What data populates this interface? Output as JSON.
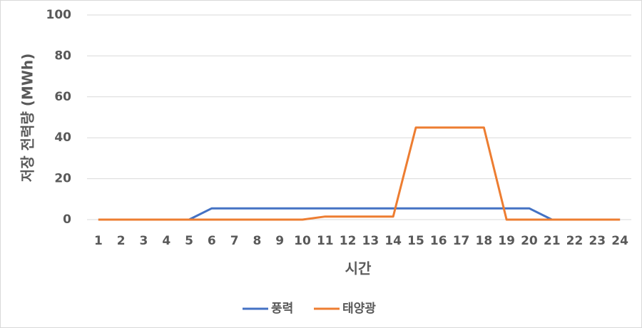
{
  "chart_data": {
    "type": "line",
    "x_label": "시간",
    "y_label": "저장 전력량 (MWh)",
    "categories": [
      "1",
      "2",
      "3",
      "4",
      "5",
      "6",
      "7",
      "8",
      "9",
      "10",
      "11",
      "12",
      "13",
      "14",
      "15",
      "16",
      "17",
      "18",
      "19",
      "20",
      "21",
      "22",
      "23",
      "24"
    ],
    "series": [
      {
        "name": "풍력",
        "color": "#4472c4",
        "values": [
          0,
          0,
          0,
          0,
          0,
          5.5,
          5.5,
          5.5,
          5.5,
          5.5,
          5.5,
          5.5,
          5.5,
          5.5,
          5.5,
          5.5,
          5.5,
          5.5,
          5.5,
          5.5,
          0,
          0,
          0,
          0
        ]
      },
      {
        "name": "태양광",
        "color": "#ed7d31",
        "values": [
          0,
          0,
          0,
          0,
          0,
          0,
          0,
          0,
          0,
          0,
          1.5,
          1.5,
          1.5,
          1.5,
          45,
          45,
          45,
          45,
          0,
          0,
          0,
          0,
          0,
          0
        ]
      }
    ],
    "ylim": [
      0,
      100
    ],
    "yticks": [
      0,
      20,
      40,
      60,
      80,
      100
    ],
    "grid": true,
    "legend": "bottom"
  }
}
